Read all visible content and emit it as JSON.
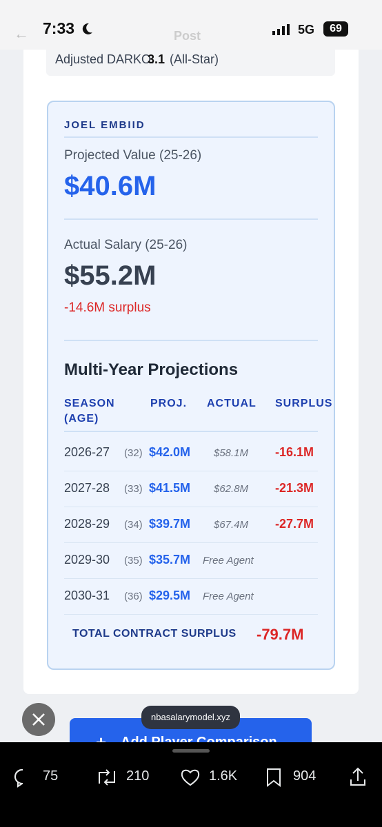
{
  "status_bar": {
    "time": "7:33",
    "network": "5G",
    "battery": "69"
  },
  "header": {
    "title": "Post"
  },
  "previous_line": {
    "label": "Adjusted DARKO:",
    "value": "3.1",
    "note": "(All-Star)"
  },
  "player_card": {
    "player": "JOEL EMBIID",
    "projected": {
      "label": "Projected Value (25-26)",
      "value": "$40.6M"
    },
    "actual": {
      "label": "Actual Salary (25-26)",
      "value": "$55.2M",
      "surplus": "-14.6M surplus"
    },
    "projections": {
      "title": "Multi-Year Projections",
      "columns": [
        "SEASON (AGE)",
        "PROJ.",
        "ACTUAL",
        "SURPLUS"
      ],
      "rows": [
        [
          "2026-27",
          "(32)",
          "$42.0M",
          "$58.1M",
          "-16.1M"
        ],
        [
          "2027-28",
          "(33)",
          "$41.5M",
          "$62.8M",
          "-21.3M"
        ],
        [
          "2028-29",
          "(34)",
          "$39.7M",
          "$67.4M",
          "-27.7M"
        ],
        [
          "2029-30",
          "(35)",
          "$35.7M",
          "Free Agent"
        ],
        [
          "2030-31",
          "(36)",
          "$29.5M",
          "Free Agent"
        ]
      ]
    },
    "total": {
      "label": "TOTAL CONTRACT SURPLUS",
      "value": "-79.7M"
    }
  },
  "tooltip": "nbasalarymodel.xyz",
  "button": "Add Player Comparison",
  "actions": {
    "replies": "75",
    "reposts": "210",
    "likes": "1.6K",
    "bookmarks": "904"
  }
}
